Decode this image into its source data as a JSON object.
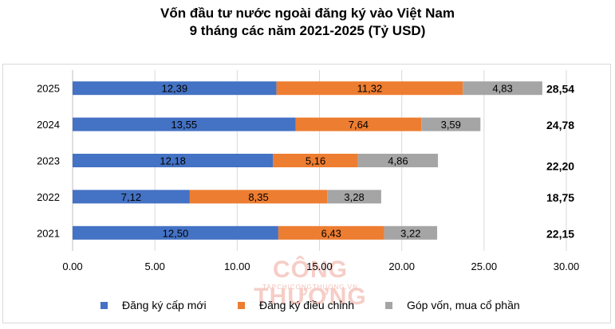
{
  "chart_data": {
    "type": "bar",
    "orientation": "horizontal",
    "stacked": true,
    "title": "Vốn đầu tư nước ngoài đăng ký vào Việt Nam",
    "subtitle": "9 tháng các năm 2021-2025 (Tỷ USD)",
    "categories": [
      "2025",
      "2024",
      "2023",
      "2022",
      "2021"
    ],
    "series": [
      {
        "name": "Đăng ký cấp mới",
        "color": "#4472c4",
        "values": [
          12.39,
          13.55,
          12.18,
          7.12,
          12.5
        ],
        "labels": [
          "12,39",
          "13,55",
          "12,18",
          "7,12",
          "12,50"
        ]
      },
      {
        "name": "Đăng ký điều chỉnh",
        "color": "#ed7d31",
        "values": [
          11.32,
          7.64,
          5.16,
          8.35,
          6.43
        ],
        "labels": [
          "11,32",
          "7,64",
          "5,16",
          "8,35",
          "6,43"
        ]
      },
      {
        "name": "Góp vốn, mua cổ phần",
        "color": "#a5a5a5",
        "values": [
          4.83,
          3.59,
          4.86,
          3.28,
          3.22
        ],
        "labels": [
          "4,83",
          "3,59",
          "4,86",
          "3,28",
          "3,22"
        ]
      }
    ],
    "totals": [
      "28,54",
      "24,78",
      "22,20",
      "18,75",
      "22,15"
    ],
    "xlim": [
      0,
      30
    ],
    "xticks": [
      0,
      5,
      10,
      15,
      20,
      25,
      30
    ],
    "xtick_labels": [
      "0.00",
      "5.00",
      "10.00",
      "15.00",
      "20.00",
      "25.00",
      "30.00"
    ],
    "grid": true,
    "legend_position": "bottom"
  },
  "watermark": {
    "text": "CÔNG THƯƠNG",
    "subtext": "TAPCHICONGTHUONG.VN"
  }
}
